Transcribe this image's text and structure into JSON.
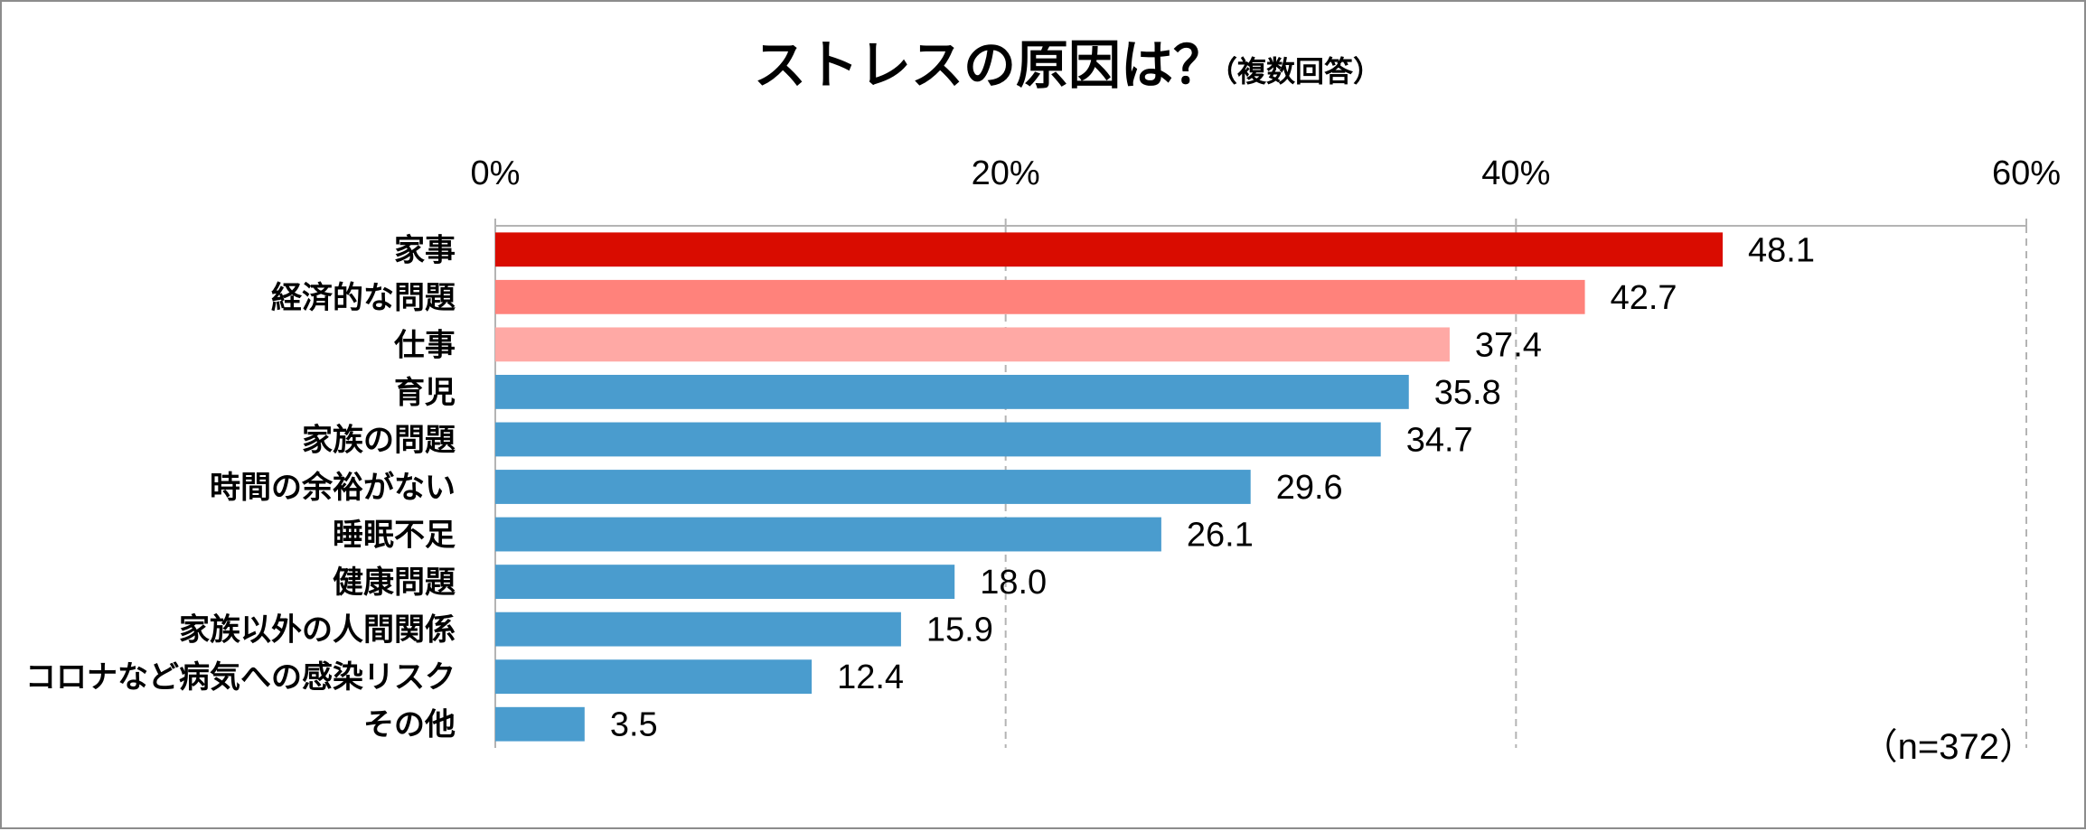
{
  "chart_data": {
    "type": "bar",
    "orientation": "horizontal",
    "title": "ストレスの原因は？",
    "subtitle": "（複数回答）",
    "categories": [
      "家事",
      "経済的な問題",
      "仕事",
      "育児",
      "家族の問題",
      "時間の余裕がない",
      "睡眠不足",
      "健康問題",
      "家族以外の人間関係",
      "コロナなど病気への感染リスク",
      "その他"
    ],
    "values": [
      48.1,
      42.7,
      37.4,
      35.8,
      34.7,
      29.6,
      26.1,
      18.0,
      15.9,
      12.4,
      3.5
    ],
    "value_labels": [
      "48.1",
      "42.7",
      "37.4",
      "35.8",
      "34.7",
      "29.6",
      "26.1",
      "18.0",
      "15.9",
      "12.4",
      "3.5"
    ],
    "bar_colors": [
      "#d90c00",
      "#ff827b",
      "#ffa9a5",
      "#4a9cce",
      "#4a9cce",
      "#4a9cce",
      "#4a9cce",
      "#4a9cce",
      "#4a9cce",
      "#4a9cce",
      "#4a9cce"
    ],
    "xlim": [
      0,
      60
    ],
    "xticks": [
      0,
      20,
      40,
      60
    ],
    "xtick_labels": [
      "0%",
      "20%",
      "40%",
      "60%"
    ],
    "xaxis_position": "top",
    "grid": true,
    "note": "（n=372）"
  }
}
